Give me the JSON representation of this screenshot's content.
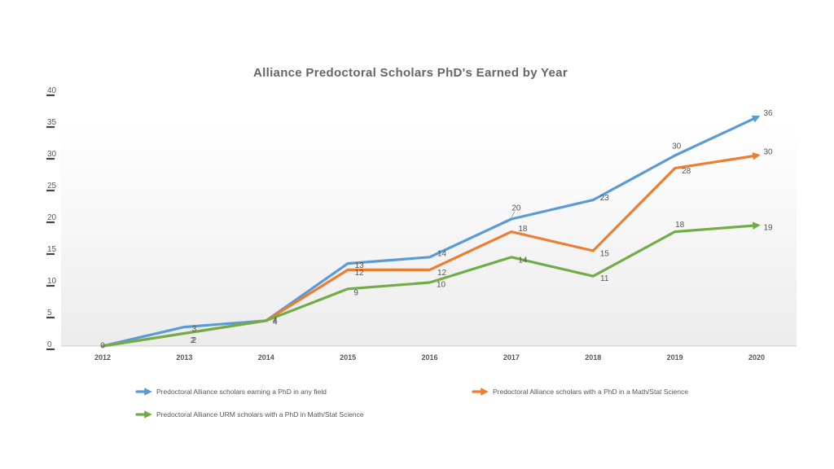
{
  "chart_data": {
    "type": "line",
    "title": "Alliance  Predoctoral  Scholars  PhD's  Earned  by  Year",
    "xlabel": "",
    "ylabel": "",
    "categories": [
      "2012",
      "2013",
      "2014",
      "2015",
      "2016",
      "2017",
      "2018",
      "2019",
      "2020"
    ],
    "ylim": [
      0,
      40
    ],
    "yticks": [
      0,
      5,
      10,
      15,
      20,
      25,
      30,
      35,
      40
    ],
    "grid": false,
    "legend_position": "bottom",
    "series": [
      {
        "name": "Predoctoral Alliance scholars earning a PhD in any field",
        "color": "#5b9bd5",
        "values": [
          0,
          3,
          4,
          13,
          14,
          20,
          23,
          30,
          36
        ],
        "labels": [
          "0",
          "3",
          "4",
          "13",
          "14",
          "20",
          "23",
          "30",
          "36"
        ]
      },
      {
        "name": "Predoctoral Alliance scholars with a PhD in a Math/Stat Science",
        "color": "#ed7d31",
        "values": [
          0,
          2,
          4,
          12,
          12,
          18,
          15,
          28,
          30
        ],
        "labels": [
          "0",
          "2",
          "4",
          "12",
          "12",
          "18",
          "15",
          "28",
          "30"
        ]
      },
      {
        "name": "Predoctoral Alliance URM scholars with a PhD in Math/Stat Science",
        "color": "#70ad47",
        "values": [
          0,
          2,
          4,
          9,
          10,
          14,
          11,
          18,
          19
        ],
        "labels": [
          "0",
          "2",
          "4",
          "9",
          "10",
          "14",
          "11",
          "18",
          "19"
        ]
      }
    ]
  }
}
